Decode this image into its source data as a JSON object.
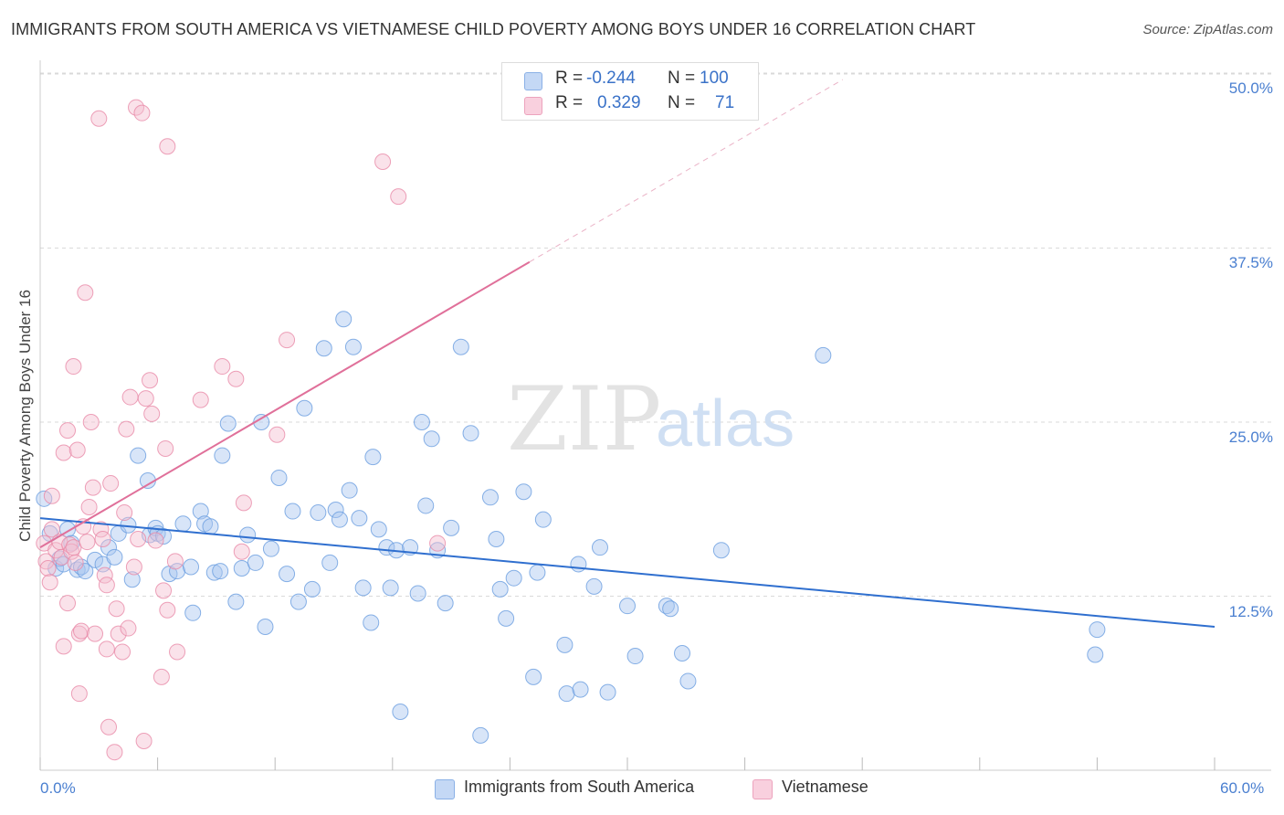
{
  "title": "IMMIGRANTS FROM SOUTH AMERICA VS VIETNAMESE CHILD POVERTY AMONG BOYS UNDER 16 CORRELATION CHART",
  "source": "Source: ZipAtlas.com",
  "watermark": {
    "zip": "ZIP",
    "atlas": "atlas"
  },
  "colors": {
    "blue": "#6a9de0",
    "blue_fill": "#a9c6f0",
    "pink": "#e88aa8",
    "pink_fill": "#f5bfd1",
    "blue_line": "#2f6fcf",
    "pink_line": "#e0709a",
    "axis_text": "#4a7fd0"
  },
  "legend": {
    "r_label": "R =",
    "n_label": "N =",
    "rows": [
      {
        "series": "Immigrants from South America",
        "r": "-0.244",
        "n": "100"
      },
      {
        "series": "Vietnamese",
        "r": "0.329",
        "n": "71"
      }
    ]
  },
  "chart_data": {
    "type": "scatter",
    "title": "IMMIGRANTS FROM SOUTH AMERICA VS VIETNAMESE CHILD POVERTY AMONG BOYS UNDER 16 CORRELATION CHART",
    "xlabel": "",
    "ylabel": "Child Poverty Among Boys Under 16",
    "xlim": [
      0,
      60
    ],
    "ylim": [
      0,
      50
    ],
    "x_tick_labels": [
      "0.0%",
      "60.0%"
    ],
    "y_ticks": [
      12.5,
      25.0,
      37.5,
      50.0
    ],
    "y_tick_labels": [
      "12.5%",
      "25.0%",
      "37.5%",
      "50.0%"
    ],
    "grid": true,
    "legend_position": "bottom-center",
    "series": [
      {
        "name": "Immigrants from South America",
        "color": "#6a9de0",
        "r": -0.244,
        "n": 100,
        "trend": {
          "x0": 0,
          "y0": 18.1,
          "x1": 60,
          "y1": 10.3
        },
        "points": [
          [
            0.2,
            19.5
          ],
          [
            0.5,
            17.0
          ],
          [
            0.8,
            14.5
          ],
          [
            1.0,
            15.2
          ],
          [
            1.2,
            14.8
          ],
          [
            1.4,
            17.3
          ],
          [
            1.6,
            16.3
          ],
          [
            1.9,
            14.4
          ],
          [
            2.1,
            14.6
          ],
          [
            2.3,
            14.3
          ],
          [
            2.8,
            15.1
          ],
          [
            3.2,
            14.8
          ],
          [
            3.5,
            16.0
          ],
          [
            3.8,
            15.3
          ],
          [
            4.0,
            17.0
          ],
          [
            4.5,
            17.6
          ],
          [
            4.7,
            13.7
          ],
          [
            5.0,
            22.6
          ],
          [
            5.5,
            20.8
          ],
          [
            5.6,
            16.9
          ],
          [
            5.9,
            17.4
          ],
          [
            6.0,
            17.0
          ],
          [
            6.3,
            16.8
          ],
          [
            6.6,
            14.1
          ],
          [
            7.0,
            14.3
          ],
          [
            7.3,
            17.7
          ],
          [
            7.7,
            14.6
          ],
          [
            7.8,
            11.3
          ],
          [
            8.2,
            18.6
          ],
          [
            8.4,
            17.7
          ],
          [
            8.7,
            17.5
          ],
          [
            8.9,
            14.2
          ],
          [
            9.2,
            14.3
          ],
          [
            9.3,
            22.6
          ],
          [
            9.6,
            24.9
          ],
          [
            10.0,
            12.1
          ],
          [
            10.3,
            14.5
          ],
          [
            10.6,
            16.9
          ],
          [
            11.0,
            14.9
          ],
          [
            11.3,
            25.0
          ],
          [
            11.5,
            10.3
          ],
          [
            11.8,
            15.9
          ],
          [
            12.2,
            21.0
          ],
          [
            12.6,
            14.1
          ],
          [
            12.9,
            18.6
          ],
          [
            13.2,
            12.1
          ],
          [
            13.5,
            26.0
          ],
          [
            13.9,
            13.0
          ],
          [
            14.2,
            18.5
          ],
          [
            14.5,
            30.3
          ],
          [
            14.8,
            14.9
          ],
          [
            15.1,
            18.7
          ],
          [
            15.3,
            18.0
          ],
          [
            15.5,
            32.4
          ],
          [
            15.8,
            20.1
          ],
          [
            16.0,
            30.4
          ],
          [
            16.3,
            18.1
          ],
          [
            16.5,
            13.1
          ],
          [
            16.9,
            10.6
          ],
          [
            17.0,
            22.5
          ],
          [
            17.3,
            17.3
          ],
          [
            17.7,
            16.0
          ],
          [
            17.9,
            13.1
          ],
          [
            18.2,
            15.8
          ],
          [
            18.4,
            4.2
          ],
          [
            18.9,
            16.0
          ],
          [
            19.3,
            12.7
          ],
          [
            19.5,
            25.0
          ],
          [
            19.7,
            19.0
          ],
          [
            20.0,
            23.8
          ],
          [
            20.3,
            15.8
          ],
          [
            20.7,
            12.0
          ],
          [
            21.0,
            17.4
          ],
          [
            21.5,
            30.4
          ],
          [
            22.0,
            24.2
          ],
          [
            22.5,
            2.5
          ],
          [
            23.0,
            19.6
          ],
          [
            23.3,
            16.6
          ],
          [
            23.5,
            13.0
          ],
          [
            23.8,
            10.9
          ],
          [
            24.2,
            13.8
          ],
          [
            24.7,
            20.0
          ],
          [
            25.2,
            6.7
          ],
          [
            25.4,
            14.2
          ],
          [
            25.7,
            18.0
          ],
          [
            26.8,
            9.0
          ],
          [
            26.9,
            5.5
          ],
          [
            27.5,
            14.8
          ],
          [
            27.6,
            5.8
          ],
          [
            28.3,
            13.2
          ],
          [
            28.6,
            16.0
          ],
          [
            29.0,
            5.6
          ],
          [
            30.0,
            11.8
          ],
          [
            30.4,
            8.2
          ],
          [
            32.0,
            11.8
          ],
          [
            32.2,
            11.6
          ],
          [
            32.8,
            8.4
          ],
          [
            33.1,
            6.4
          ],
          [
            34.8,
            15.8
          ],
          [
            40.0,
            29.8
          ],
          [
            54.0,
            10.1
          ],
          [
            53.9,
            8.3
          ]
        ]
      },
      {
        "name": "Vietnamese",
        "color": "#e88aa8",
        "r": 0.329,
        "n": 71,
        "trend": {
          "x0": 0,
          "y0": 16.0,
          "x1": 25.0,
          "y1": 36.5
        },
        "trend_dashed": {
          "x0": 25.0,
          "y0": 36.5,
          "x1": 41.0,
          "y1": 49.6
        },
        "points": [
          [
            0.2,
            16.3
          ],
          [
            0.3,
            15.0
          ],
          [
            0.4,
            14.5
          ],
          [
            0.5,
            13.5
          ],
          [
            0.6,
            17.3
          ],
          [
            0.8,
            15.8
          ],
          [
            1.0,
            16.4
          ],
          [
            1.1,
            15.3
          ],
          [
            1.2,
            22.8
          ],
          [
            1.2,
            8.9
          ],
          [
            1.4,
            24.4
          ],
          [
            1.4,
            12.0
          ],
          [
            1.5,
            16.2
          ],
          [
            1.6,
            15.7
          ],
          [
            1.7,
            29.0
          ],
          [
            1.7,
            16.0
          ],
          [
            1.8,
            14.9
          ],
          [
            1.9,
            23.0
          ],
          [
            2.0,
            5.5
          ],
          [
            2.0,
            9.8
          ],
          [
            2.1,
            10.0
          ],
          [
            2.2,
            17.5
          ],
          [
            2.3,
            34.3
          ],
          [
            2.4,
            16.4
          ],
          [
            2.5,
            18.9
          ],
          [
            2.6,
            25.0
          ],
          [
            2.7,
            20.3
          ],
          [
            2.8,
            9.8
          ],
          [
            3.0,
            46.8
          ],
          [
            3.1,
            17.3
          ],
          [
            3.2,
            16.6
          ],
          [
            3.3,
            14.0
          ],
          [
            3.4,
            13.3
          ],
          [
            3.4,
            8.7
          ],
          [
            3.5,
            3.1
          ],
          [
            3.6,
            20.6
          ],
          [
            3.8,
            1.3
          ],
          [
            3.9,
            11.6
          ],
          [
            4.0,
            9.8
          ],
          [
            4.2,
            8.5
          ],
          [
            4.3,
            18.5
          ],
          [
            4.4,
            24.5
          ],
          [
            4.5,
            10.2
          ],
          [
            4.6,
            26.8
          ],
          [
            4.8,
            14.6
          ],
          [
            4.9,
            47.6
          ],
          [
            5.0,
            16.6
          ],
          [
            5.2,
            47.2
          ],
          [
            5.3,
            2.1
          ],
          [
            5.4,
            26.7
          ],
          [
            5.6,
            28.0
          ],
          [
            5.7,
            25.6
          ],
          [
            5.9,
            16.5
          ],
          [
            6.2,
            6.7
          ],
          [
            6.3,
            12.9
          ],
          [
            6.4,
            23.1
          ],
          [
            6.5,
            44.8
          ],
          [
            6.5,
            11.5
          ],
          [
            6.9,
            15.0
          ],
          [
            7.0,
            8.5
          ],
          [
            8.2,
            26.6
          ],
          [
            9.3,
            29.0
          ],
          [
            10.0,
            28.1
          ],
          [
            10.3,
            15.7
          ],
          [
            10.4,
            19.2
          ],
          [
            12.1,
            24.1
          ],
          [
            12.6,
            30.9
          ],
          [
            17.5,
            43.7
          ],
          [
            18.3,
            41.2
          ],
          [
            20.3,
            16.3
          ],
          [
            0.6,
            19.7
          ]
        ]
      }
    ]
  }
}
